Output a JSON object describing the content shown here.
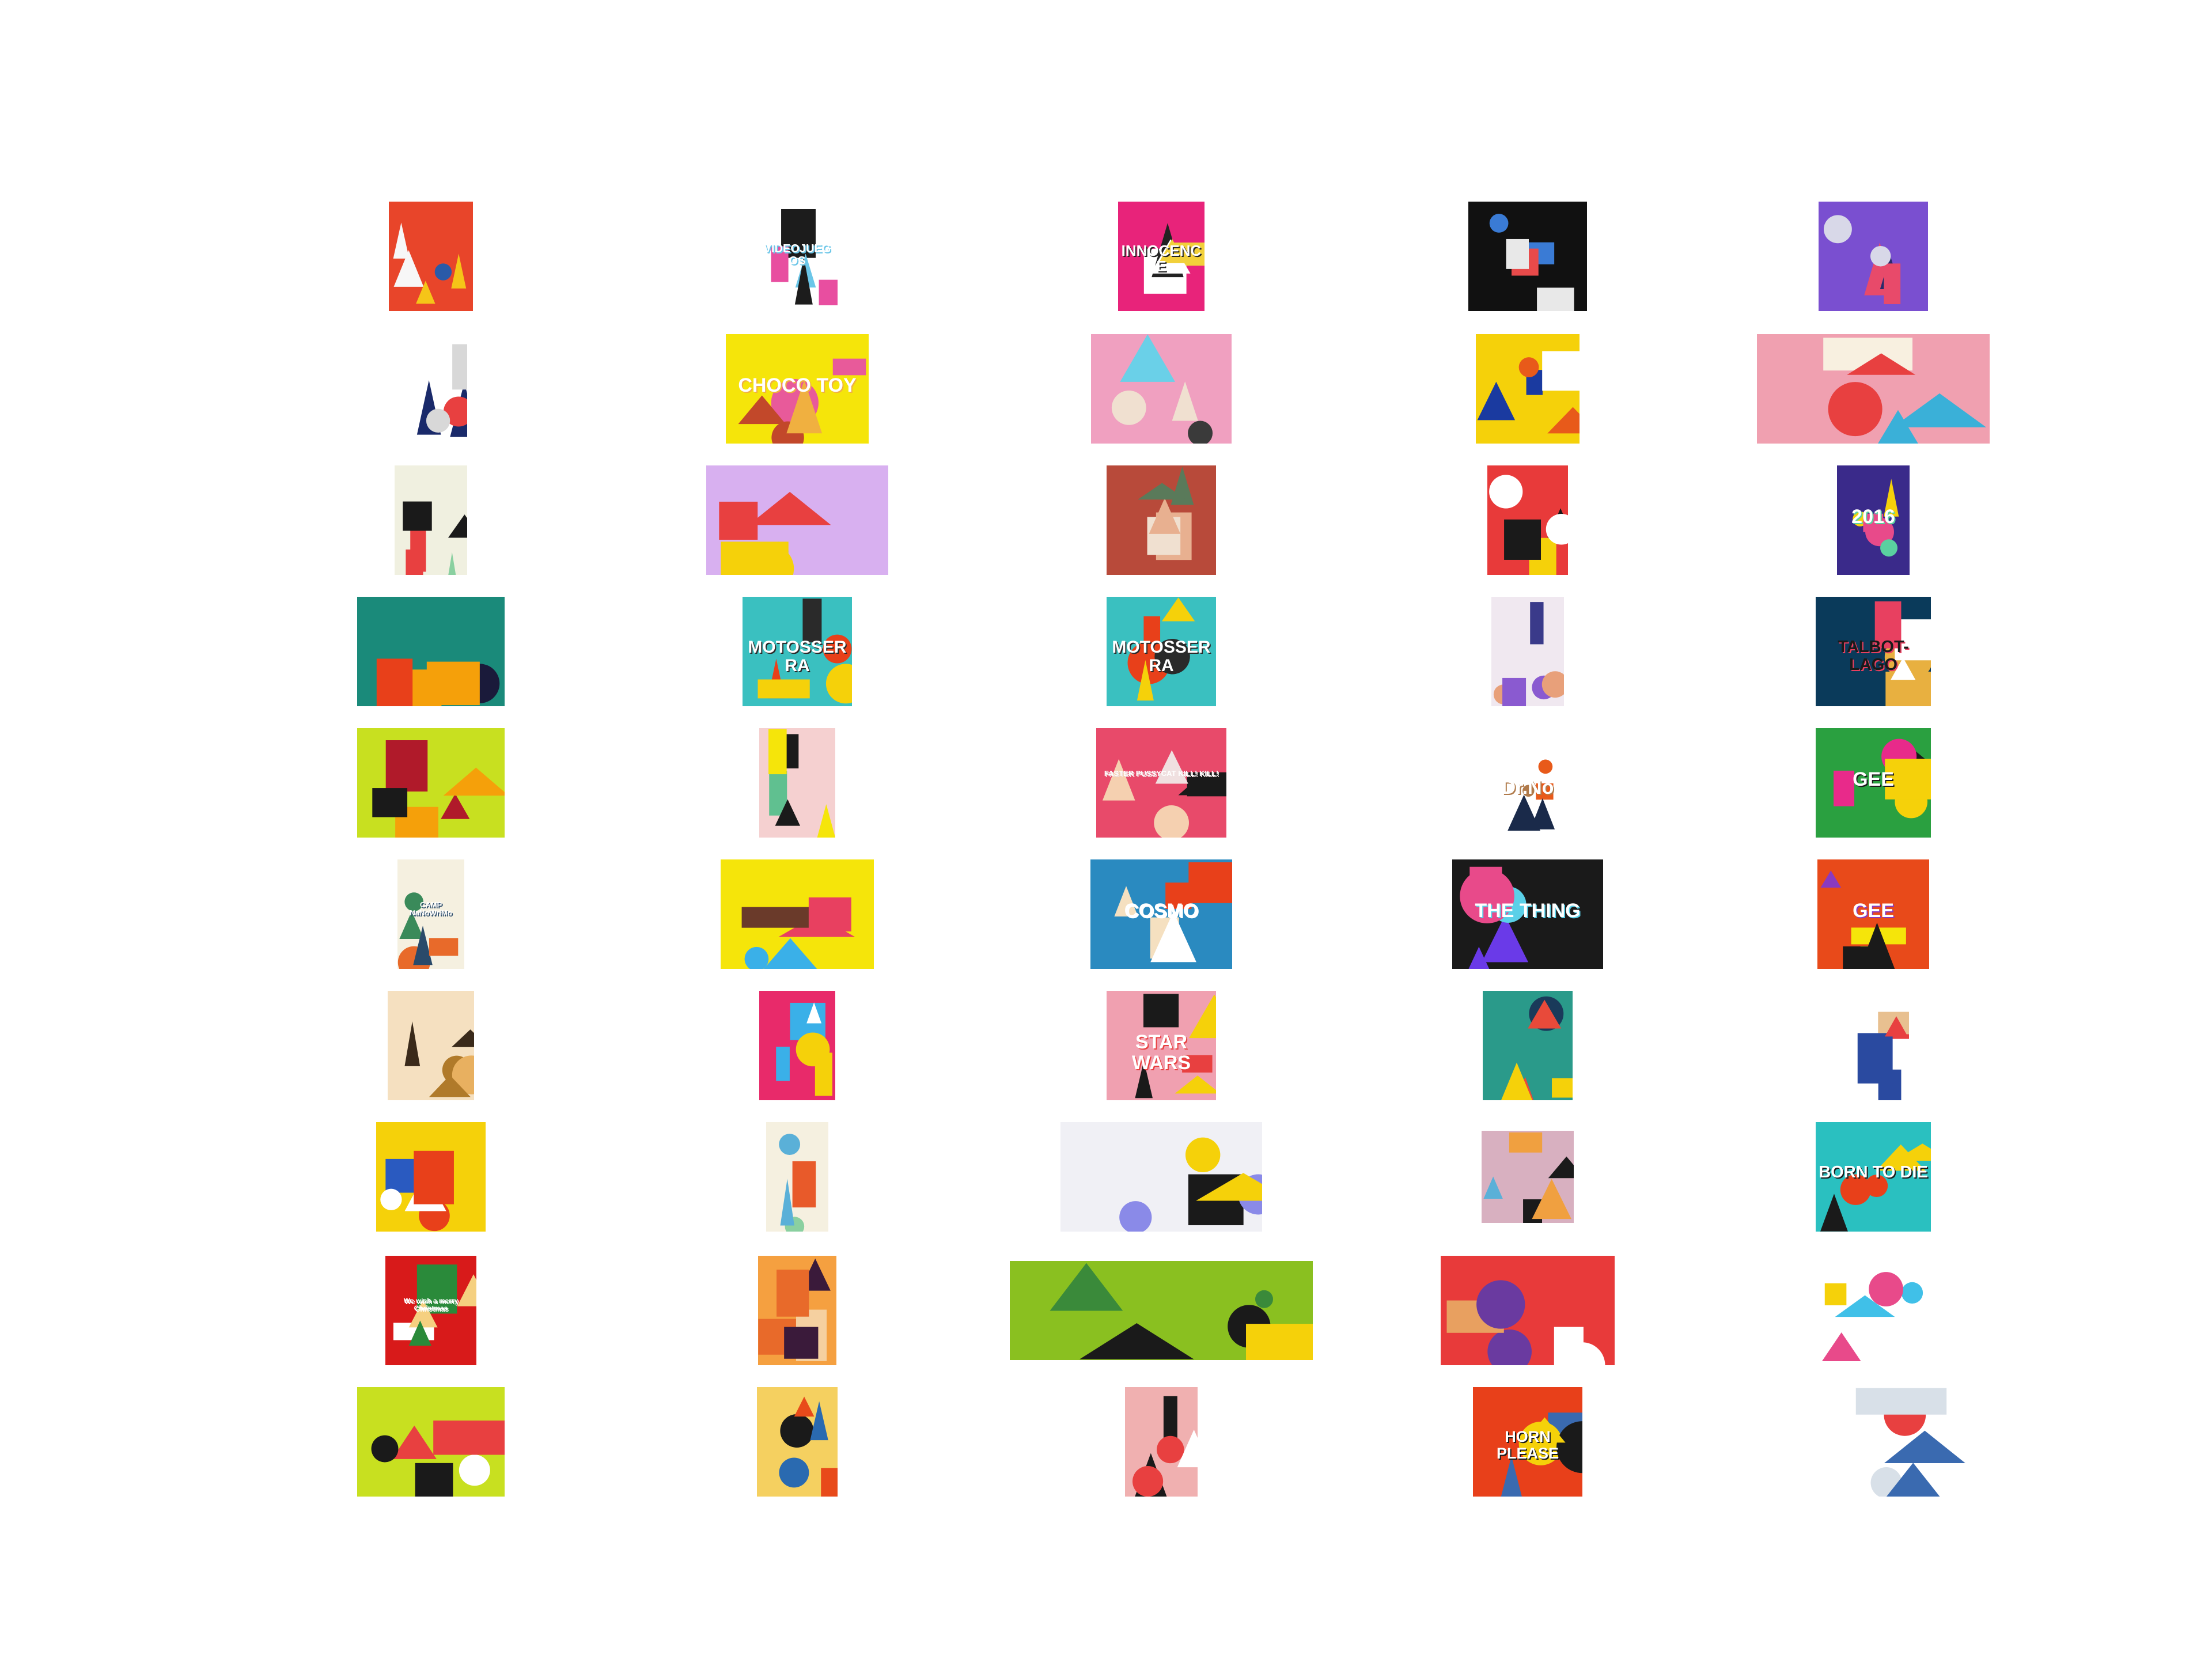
{
  "gallery": {
    "columns": 5,
    "rows": 10,
    "items": [
      {
        "text": "",
        "palette": [
          "#e8452a",
          "#f5c518",
          "#f7f7f7",
          "#2a5aa8"
        ]
      },
      {
        "text": "VIDEOJUEGOS",
        "palette": [
          "#ffffff",
          "#e84ea0",
          "#1c1c1c",
          "#6bc6e8"
        ]
      },
      {
        "text": "INNOCENCE",
        "palette": [
          "#e8237a",
          "#ffffff",
          "#f2d03a",
          "#222222"
        ]
      },
      {
        "text": "",
        "palette": [
          "#111111",
          "#e8e8e8",
          "#3a7bd5",
          "#e84a4a"
        ]
      },
      {
        "text": "",
        "palette": [
          "#7a4fd0",
          "#e84a6a",
          "#d8d8e8",
          "#2a2a6a"
        ]
      },
      {
        "text": "",
        "palette": [
          "#ffffff",
          "#1a2a6a",
          "#d8d8d8",
          "#e84040"
        ]
      },
      {
        "text": "CHOCO TOY",
        "palette": [
          "#f5e50a",
          "#e85a9a",
          "#c2482a",
          "#f0b040"
        ]
      },
      {
        "text": "",
        "palette": [
          "#f0a0c0",
          "#6ad0e8",
          "#f0e0d0",
          "#3a3a3a"
        ]
      },
      {
        "text": "",
        "palette": [
          "#f5d10a",
          "#1a3aa0",
          "#e85a1a",
          "#ffffff"
        ]
      },
      {
        "text": "",
        "palette": [
          "#f0a0b0",
          "#e84040",
          "#3ab0d8",
          "#f8f0e0"
        ]
      },
      {
        "text": "",
        "palette": [
          "#f0f0e0",
          "#1a1a1a",
          "#e84040",
          "#8ad0a0"
        ]
      },
      {
        "text": "",
        "palette": [
          "#d8b0f0",
          "#f5d10a",
          "#e84040",
          "#60c0e8"
        ]
      },
      {
        "text": "",
        "palette": [
          "#b84a3a",
          "#e8b090",
          "#5a7a5a",
          "#f0e0d0"
        ]
      },
      {
        "text": "",
        "palette": [
          "#e83a3a",
          "#1a1a1a",
          "#ffffff",
          "#f5d10a"
        ]
      },
      {
        "text": "2016",
        "palette": [
          "#3a2a8a",
          "#f5d10a",
          "#e84a8a",
          "#5ad0a0"
        ]
      },
      {
        "text": "",
        "palette": [
          "#1a8a7a",
          "#e8401a",
          "#f5a00a",
          "#1a1a3a"
        ]
      },
      {
        "text": "MOTOSSERRA",
        "palette": [
          "#3ac0c0",
          "#e8401a",
          "#f5d10a",
          "#2a2a2a"
        ]
      },
      {
        "text": "MOTOSSERRA",
        "palette": [
          "#3ac0c0",
          "#e8401a",
          "#f5d10a",
          "#2a2a2a"
        ]
      },
      {
        "text": "",
        "palette": [
          "#f0e8f0",
          "#8a5ad0",
          "#e8a07a",
          "#3a3a8a"
        ]
      },
      {
        "text": "TALBOT-LAGO",
        "palette": [
          "#0a3a5a",
          "#e8b040",
          "#ffffff",
          "#e84060"
        ]
      },
      {
        "text": "",
        "palette": [
          "#c8e020",
          "#b01a2a",
          "#f5a00a",
          "#1a1a1a"
        ]
      },
      {
        "text": "",
        "palette": [
          "#f5d0d0",
          "#f5e50a",
          "#1a1a1a",
          "#60c090"
        ]
      },
      {
        "text": "FASTER PUSSYCAT KILL! KILL!",
        "palette": [
          "#e84a6a",
          "#f5d0b0",
          "#1a1a1a",
          "#f0e0e0"
        ]
      },
      {
        "text": "Dr.No",
        "palette": [
          "#ffffff",
          "#1a2a4a",
          "#e85a1a",
          "#b07a4a"
        ]
      },
      {
        "text": "GEE",
        "palette": [
          "#2aa040",
          "#e82a8a",
          "#f5d10a",
          "#1a1a1a"
        ]
      },
      {
        "text": "CAMP NaNoWriMo",
        "palette": [
          "#f5f0e0",
          "#e86a2a",
          "#3a8a5a",
          "#2a4a6a"
        ]
      },
      {
        "text": "",
        "palette": [
          "#f5e50a",
          "#e84060",
          "#3ab0e8",
          "#6a3a2a"
        ]
      },
      {
        "text": "COSMO",
        "palette": [
          "#2a8ac0",
          "#e8401a",
          "#f5e0c0",
          "#ffffff"
        ]
      },
      {
        "text": "THE THING",
        "palette": [
          "#1a1a1a",
          "#6a3ae8",
          "#e84a8a",
          "#5ad0e8"
        ]
      },
      {
        "text": "GEE",
        "palette": [
          "#e84a1a",
          "#f5e50a",
          "#1a1a1a",
          "#8a3ac0"
        ]
      },
      {
        "text": "",
        "palette": [
          "#f5e0c0",
          "#b07a2a",
          "#3a2a1a",
          "#e8b060"
        ]
      },
      {
        "text": "",
        "palette": [
          "#e82a6a",
          "#3ab0e8",
          "#f5d10a",
          "#ffffff"
        ]
      },
      {
        "text": "STAR WARS",
        "palette": [
          "#f0a0b0",
          "#1a1a1a",
          "#f5d10a",
          "#e84040"
        ]
      },
      {
        "text": "",
        "palette": [
          "#2a9a8a",
          "#e84a3a",
          "#f5d10a",
          "#1a3a5a"
        ]
      },
      {
        "text": "",
        "palette": [
          "#ffffff",
          "#2a4aa0",
          "#e84040",
          "#e8c090"
        ]
      },
      {
        "text": "",
        "palette": [
          "#f5d10a",
          "#e8401a",
          "#ffffff",
          "#2a5ac0"
        ]
      },
      {
        "text": "",
        "palette": [
          "#f5f0e0",
          "#e85a2a",
          "#5ab0d8",
          "#8ad0a0"
        ]
      },
      {
        "text": "",
        "palette": [
          "#f0f0f5",
          "#8a8ae8",
          "#f5d10a",
          "#1a1a1a"
        ]
      },
      {
        "text": "",
        "palette": [
          "#d8b0c0",
          "#1a1a1a",
          "#f0a040",
          "#5ab0d8"
        ]
      },
      {
        "text": "BORN TO DIE",
        "palette": [
          "#2ac0c0",
          "#e8401a",
          "#f5d10a",
          "#1a1a1a"
        ]
      },
      {
        "text": "We wish a merry Christmas",
        "palette": [
          "#d81a1a",
          "#f5d080",
          "#2a8a3a",
          "#ffffff"
        ]
      },
      {
        "text": "",
        "palette": [
          "#f5a040",
          "#3a1a3a",
          "#e86a2a",
          "#f5d0a0"
        ]
      },
      {
        "text": "",
        "palette": [
          "#8ac020",
          "#1a1a1a",
          "#3a8a3a",
          "#f5d10a"
        ]
      },
      {
        "text": "",
        "palette": [
          "#e83a3a",
          "#ffffff",
          "#6a3aa0",
          "#e8a060"
        ]
      },
      {
        "text": "",
        "palette": [
          "#ffffff",
          "#40c0e8",
          "#e84a8a",
          "#f5d10a"
        ]
      },
      {
        "text": "",
        "palette": [
          "#c8e020",
          "#e84040",
          "#1a1a1a",
          "#ffffff"
        ]
      },
      {
        "text": "",
        "palette": [
          "#f5d060",
          "#2a6ab0",
          "#e84a1a",
          "#1a1a1a"
        ]
      },
      {
        "text": "",
        "palette": [
          "#f0b0b0",
          "#1a1a1a",
          "#e84040",
          "#ffffff"
        ]
      },
      {
        "text": "HORN PLEASE",
        "palette": [
          "#e8401a",
          "#3a6ab0",
          "#f5d10a",
          "#1a1a1a"
        ]
      },
      {
        "text": "",
        "palette": [
          "#ffffff",
          "#d8e0e8",
          "#3a6ab0",
          "#e84040"
        ]
      }
    ]
  }
}
